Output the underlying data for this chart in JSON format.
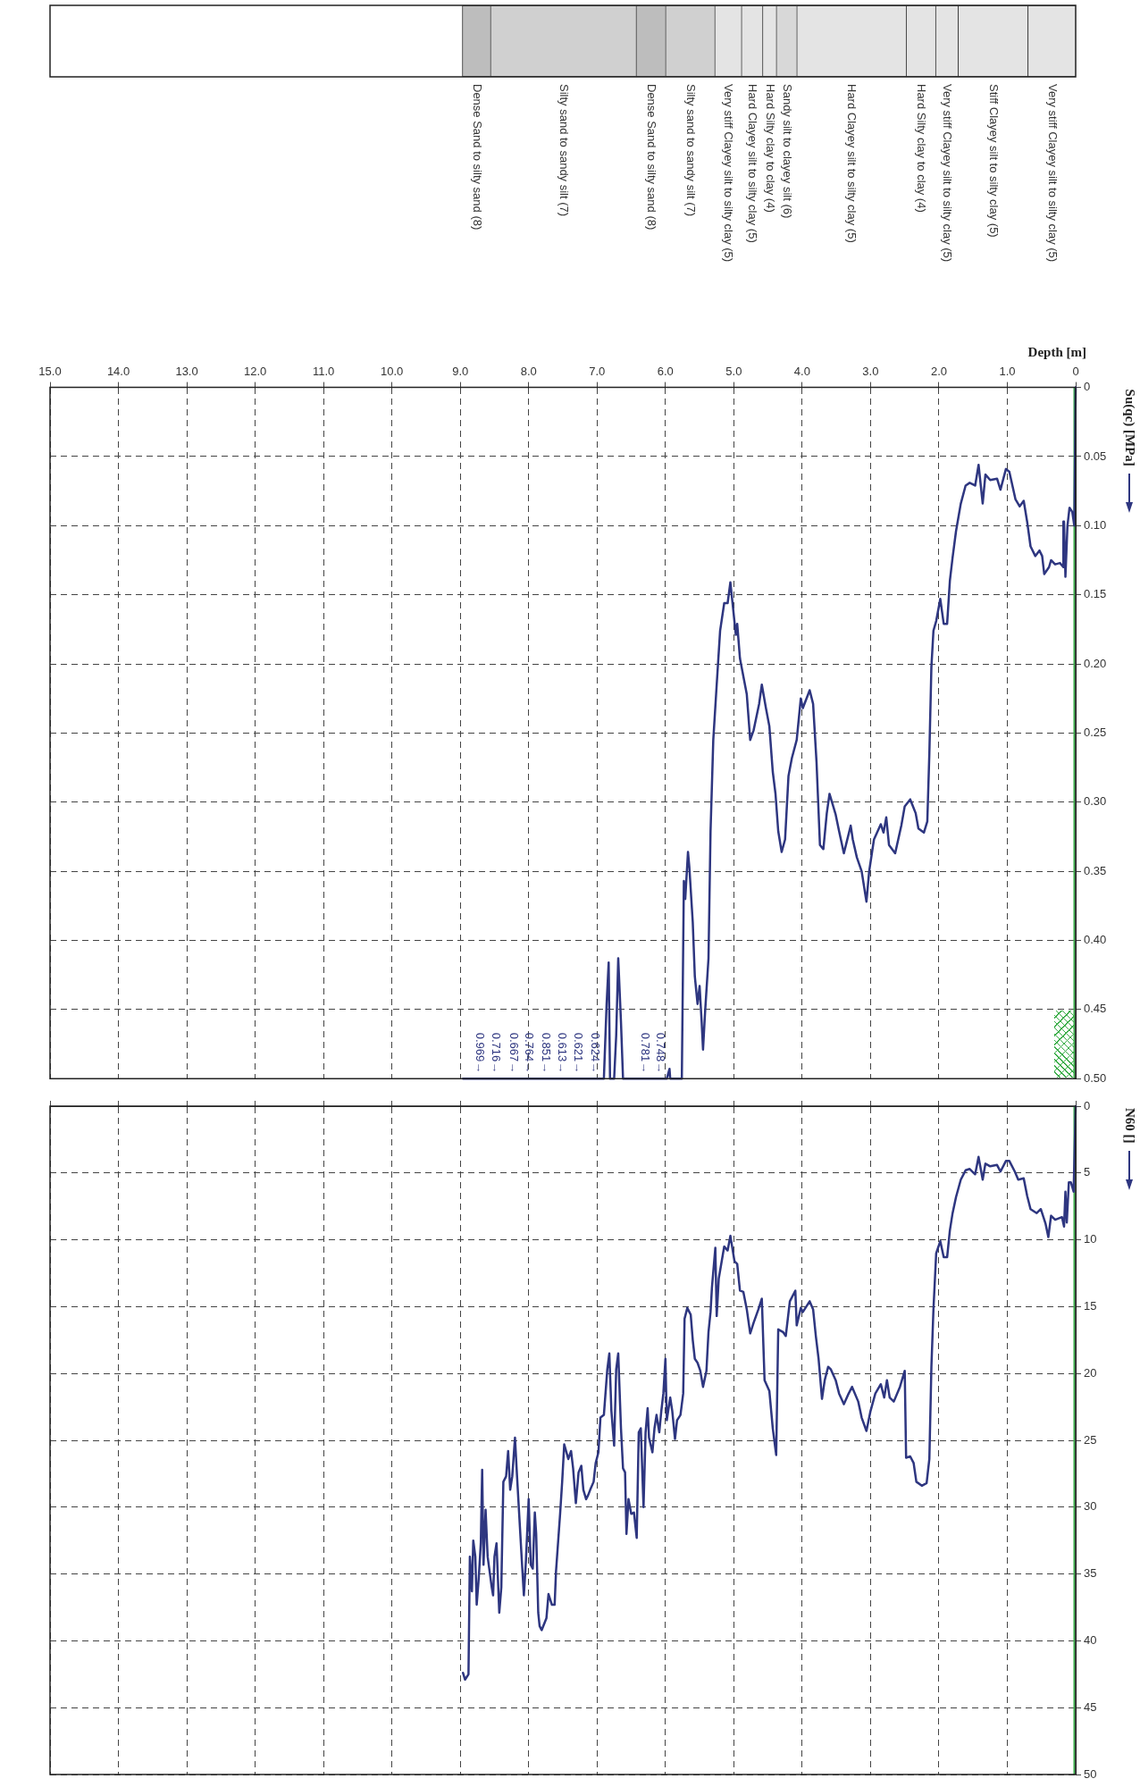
{
  "chart_data": [
    {
      "type": "bar",
      "orientation": "horizontal",
      "stacked": true,
      "categories": [
        null
      ],
      "xlim": [
        15,
        0
      ],
      "tick_labels": false,
      "series": [
        {
          "name": "Very stiff Clayey silt to silty clay (5)",
          "color": "#e4e4e4",
          "values": [
            0.7
          ]
        },
        {
          "name": "Stiff Clayey silt to silty clay (5)",
          "color": "#e4e4e4",
          "values": [
            1.02
          ]
        },
        {
          "name": "Very stiff Clayey silt to silty clay (5)",
          "color": "#e4e4e4",
          "values": [
            0.33
          ]
        },
        {
          "name": "Hard Silty clay to clay (4)",
          "color": "#e4e4e4",
          "values": [
            0.43
          ]
        },
        {
          "name": "Hard Clayey silt to silty clay (5)",
          "color": "#e4e4e4",
          "values": [
            1.6
          ]
        },
        {
          "name": "Sandy silt to clayey silt (6)",
          "color": "#d8d8d8",
          "values": [
            0.3
          ]
        },
        {
          "name": "Hard Silty clay to clay (4)",
          "color": "#e4e4e4",
          "values": [
            0.2
          ]
        },
        {
          "name": "Hard Clayey silt to silty clay (5)",
          "color": "#e4e4e4",
          "values": [
            0.31
          ]
        },
        {
          "name": "Very stiff Clayey silt to silty clay (5)",
          "color": "#e4e4e4",
          "values": [
            0.39
          ]
        },
        {
          "name": "Silty sand to sandy silt (7)",
          "color": "#d0d0d0",
          "values": [
            0.72
          ]
        },
        {
          "name": "Dense Sand to silty sand (8)",
          "color": "#bdbdbd",
          "values": [
            0.43
          ]
        },
        {
          "name": "Silty sand to sandy silt (7)",
          "color": "#d0d0d0",
          "values": [
            2.13
          ]
        },
        {
          "name": "Dense Sand to silty sand (8)",
          "color": "#bdbdbd",
          "values": [
            0.41
          ]
        }
      ]
    },
    {
      "type": "line",
      "xlabel": "Depth [m]",
      "ylabel": "Su(qc) [MPa]",
      "xlim": [
        15,
        0
      ],
      "ylim": [
        0.5,
        0
      ],
      "xticks": [
        0,
        {
          "value": 1,
          "label": "1.0"
        },
        {
          "value": 2,
          "label": "2.0"
        },
        {
          "value": 3,
          "label": "3.0"
        },
        {
          "value": 4,
          "label": "4.0"
        },
        {
          "value": 5,
          "label": "5.0"
        },
        {
          "value": 6,
          "label": "6.0"
        },
        {
          "value": 7,
          "label": "7.0"
        },
        {
          "value": 8,
          "label": "8.0"
        },
        {
          "value": 9,
          "label": "9.0"
        },
        {
          "value": 10,
          "label": "10.0"
        },
        {
          "value": 11,
          "label": "11.0"
        },
        {
          "value": 12,
          "label": "12.0"
        },
        {
          "value": 13,
          "label": "13.0"
        },
        {
          "value": 14,
          "label": "14.0"
        },
        {
          "value": 15,
          "label": "15.0"
        }
      ],
      "yticks": [
        0,
        0.05,
        {
          "value": 0.1,
          "label": "0.10"
        },
        0.15,
        {
          "value": 0.2,
          "label": "0.20"
        },
        0.25,
        {
          "value": 0.3,
          "label": "0.30"
        },
        0.35,
        {
          "value": 0.4,
          "label": "0.40"
        },
        0.45,
        {
          "value": 0.5,
          "label": "0.50"
        }
      ],
      "grid": true,
      "series": [
        {
          "color": "#2e3680",
          "x": [
            0,
            0.02,
            0.05,
            0.09,
            0.12,
            0.15,
            0.17,
            0.18,
            0.23,
            0.3,
            0.36,
            0.39,
            0.46,
            0.49,
            0.53,
            0.59,
            0.66,
            0.71,
            0.76,
            0.82,
            0.88,
            0.97,
            1.02,
            1.1,
            1.15,
            1.25,
            1.32,
            1.36,
            1.42,
            1.47,
            1.55,
            1.61,
            1.68,
            1.75,
            1.8,
            1.84,
            1.88,
            1.93,
            1.98,
            2.04,
            2.08,
            2.11,
            2.14,
            2.17,
            2.22,
            2.3,
            2.34,
            2.42,
            2.5,
            2.55,
            2.64,
            2.73,
            2.77,
            2.81,
            2.85,
            2.95,
            3.02,
            3.06,
            3.13,
            3.2,
            3.26,
            3.29,
            3.35,
            3.39,
            3.46,
            3.51,
            3.6,
            3.64,
            3.69,
            3.74,
            3.79,
            3.84,
            3.89,
            3.99,
            4.02,
            4.08,
            4.15,
            4.2,
            4.25,
            4.3,
            4.35,
            4.39,
            4.43,
            4.48,
            4.53,
            4.59,
            4.63,
            4.71,
            4.76,
            4.81,
            4.86,
            4.91,
            4.95,
            4.97,
            5.01,
            5.05,
            5.09,
            5.14,
            5.2,
            5.25,
            5.3,
            5.34,
            5.37,
            5.42,
            5.45,
            5.47,
            5.5,
            5.53,
            5.57,
            5.6,
            5.65,
            5.67,
            5.71,
            5.73,
            5.76,
            5.82,
            5.93,
            5.94,
            5.98,
            6.62,
            6.65,
            6.69,
            6.72,
            6.75,
            6.81,
            6.83,
            6.86,
            6.9,
            8.96
          ],
          "values": [
            0,
            0.1,
            0.09,
            0.087,
            0.1,
            0.137,
            0.097,
            0.13,
            0.127,
            0.128,
            0.125,
            0.13,
            0.135,
            0.122,
            0.118,
            0.122,
            0.115,
            0.097,
            0.082,
            0.086,
            0.081,
            0.061,
            0.059,
            0.074,
            0.066,
            0.067,
            0.063,
            0.084,
            0.056,
            0.071,
            0.069,
            0.071,
            0.084,
            0.104,
            0.123,
            0.14,
            0.171,
            0.171,
            0.153,
            0.169,
            0.176,
            0.202,
            0.265,
            0.314,
            0.322,
            0.319,
            0.308,
            0.298,
            0.303,
            0.317,
            0.337,
            0.331,
            0.311,
            0.322,
            0.316,
            0.327,
            0.35,
            0.372,
            0.35,
            0.34,
            0.327,
            0.317,
            0.329,
            0.337,
            0.321,
            0.309,
            0.294,
            0.308,
            0.334,
            0.331,
            0.271,
            0.229,
            0.219,
            0.232,
            0.225,
            0.255,
            0.268,
            0.281,
            0.327,
            0.336,
            0.321,
            0.294,
            0.278,
            0.245,
            0.232,
            0.215,
            0.229,
            0.248,
            0.255,
            0.222,
            0.209,
            0.196,
            0.171,
            0.179,
            0.16,
            0.141,
            0.156,
            0.156,
            0.176,
            0.215,
            0.255,
            0.321,
            0.413,
            0.452,
            0.479,
            0.459,
            0.433,
            0.446,
            0.426,
            0.387,
            0.347,
            0.336,
            0.37,
            0.357,
            0.5,
            0.5,
            0.5,
            0.493,
            0.5,
            0.5,
            0.459,
            0.413,
            0.469,
            0.5,
            0.5,
            0.416,
            0.446,
            0.5,
            0.5
          ]
        }
      ],
      "ref_lines": [
        {
          "axis": "x",
          "value": 0.02,
          "color": "#3cae4a"
        }
      ],
      "annotations": [
        {
          "text": "0.748→",
          "x": 6.08,
          "y": 0.5
        },
        {
          "text": "0.781→",
          "x": 6.3,
          "y": 0.5
        },
        {
          "text": "0.624→",
          "x": 7.03,
          "y": 0.5
        },
        {
          "text": "0.621→",
          "x": 7.28,
          "y": 0.5
        },
        {
          "text": "0.613→",
          "x": 7.52,
          "y": 0.5
        },
        {
          "text": "0.851→",
          "x": 7.75,
          "y": 0.5
        },
        {
          "text": "0.764→",
          "x": 8.0,
          "y": 0.5
        },
        {
          "text": "0.667→",
          "x": 8.23,
          "y": 0.5
        },
        {
          "text": "0.716→",
          "x": 8.48,
          "y": 0.5
        },
        {
          "text": "0.969→",
          "x": 8.72,
          "y": 0.5
        }
      ]
    },
    {
      "type": "line",
      "ylabel": "N60 []",
      "xlim": [
        15,
        0
      ],
      "ylim": [
        50,
        0
      ],
      "xticks": [
        0,
        1,
        2,
        3,
        4,
        5,
        6,
        7,
        8,
        9,
        10,
        11,
        12,
        13,
        14,
        15
      ],
      "yticks": [
        0,
        5,
        10,
        15,
        20,
        25,
        30,
        35,
        40,
        45,
        50
      ],
      "grid": true,
      "tick_labels": "y",
      "series": [
        {
          "color": "#2e3680",
          "x": [
            0,
            0.03,
            0.07,
            0.1,
            0.13,
            0.15,
            0.17,
            0.2,
            0.3,
            0.36,
            0.4,
            0.44,
            0.51,
            0.57,
            0.66,
            0.71,
            0.76,
            0.84,
            0.89,
            0.97,
            1.02,
            1.1,
            1.15,
            1.25,
            1.32,
            1.36,
            1.42,
            1.47,
            1.55,
            1.61,
            1.68,
            1.75,
            1.8,
            1.84,
            1.88,
            1.93,
            1.98,
            2.04,
            2.08,
            2.11,
            2.14,
            2.18,
            2.25,
            2.33,
            2.37,
            2.42,
            2.48,
            2.5,
            2.57,
            2.66,
            2.72,
            2.76,
            2.8,
            2.85,
            2.93,
            3.0,
            3.06,
            3.13,
            3.18,
            3.27,
            3.33,
            3.39,
            3.46,
            3.51,
            3.58,
            3.62,
            3.67,
            3.71,
            3.76,
            3.8,
            3.84,
            3.89,
            3.99,
            4.02,
            4.08,
            4.1,
            4.18,
            4.24,
            4.28,
            4.35,
            4.38,
            4.43,
            4.48,
            4.55,
            4.59,
            4.64,
            4.71,
            4.76,
            4.81,
            4.86,
            4.91,
            4.95,
            4.99,
            5.05,
            5.09,
            5.14,
            5.22,
            5.25,
            5.27,
            5.32,
            5.34,
            5.37,
            5.4,
            5.45,
            5.49,
            5.53,
            5.57,
            5.6,
            5.63,
            5.68,
            5.72,
            5.74,
            5.78,
            5.83,
            5.86,
            5.9,
            5.93,
            5.98,
            6.0,
            6.03,
            6.06,
            6.09,
            6.13,
            6.16,
            6.19,
            6.24,
            6.26,
            6.29,
            6.32,
            6.36,
            6.39,
            6.42,
            6.46,
            6.5,
            6.54,
            6.57,
            6.59,
            6.62,
            6.65,
            6.69,
            6.72,
            6.75,
            6.79,
            6.82,
            6.85,
            6.9,
            6.95,
            6.98,
            7.02,
            7.05,
            7.1,
            7.13,
            7.16,
            7.2,
            7.23,
            7.27,
            7.31,
            7.35,
            7.38,
            7.42,
            7.48,
            7.51,
            7.54,
            7.6,
            7.62,
            7.66,
            7.71,
            7.74,
            7.81,
            7.84,
            7.86,
            7.89,
            7.91,
            7.94,
            7.97,
            8.0,
            8.04,
            8.07,
            8.1,
            8.17,
            8.2,
            8.24,
            8.27,
            8.3,
            8.33,
            8.37,
            8.4,
            8.43,
            8.47,
            8.5,
            8.52,
            8.54,
            8.6,
            8.63,
            8.66,
            8.68,
            8.7,
            8.73,
            8.76,
            8.78,
            8.81,
            8.83,
            8.86,
            8.88,
            8.93,
            8.96
          ],
          "values": [
            0,
            6.4,
            5.7,
            5.7,
            8.7,
            6.4,
            9.0,
            8.3,
            8.5,
            8.2,
            9.8,
            8.8,
            7.7,
            8.0,
            7.7,
            6.7,
            5.4,
            5.5,
            4.9,
            4.1,
            4.1,
            4.9,
            4.4,
            4.5,
            4.3,
            5.5,
            3.8,
            5.1,
            4.7,
            4.8,
            5.5,
            6.8,
            8.0,
            9.3,
            11.3,
            11.3,
            10.1,
            11.0,
            15.2,
            19.5,
            26.4,
            28.2,
            28.4,
            28.1,
            26.7,
            26.2,
            26.3,
            19.8,
            21.0,
            22.1,
            21.8,
            20.5,
            21.8,
            20.8,
            21.5,
            22.8,
            24.3,
            23.3,
            22.1,
            21.0,
            21.6,
            22.3,
            21.5,
            20.5,
            19.7,
            19.5,
            20.5,
            21.9,
            18.9,
            17.2,
            15.2,
            14.6,
            15.4,
            15.1,
            16.4,
            13.8,
            14.6,
            17.2,
            16.9,
            16.7,
            26.1,
            24.1,
            21.3,
            20.5,
            14.4,
            15.2,
            16.2,
            17.0,
            15.2,
            13.9,
            13.8,
            11.8,
            11.6,
            9.7,
            10.8,
            10.5,
            12.9,
            15.7,
            10.6,
            13.6,
            15.4,
            16.9,
            19.8,
            21.0,
            19.8,
            19.2,
            18.9,
            17.5,
            15.6,
            15.1,
            15.9,
            21.5,
            23.1,
            23.5,
            24.9,
            22.8,
            21.8,
            23.5,
            18.9,
            21.5,
            22.8,
            24.4,
            23.1,
            24.1,
            25.9,
            24.8,
            22.6,
            24.4,
            30.0,
            24.1,
            24.4,
            32.3,
            30.4,
            30.5,
            29.4,
            32.0,
            27.4,
            27.1,
            24.1,
            18.5,
            19.7,
            25.4,
            22.8,
            18.5,
            19.7,
            23.1,
            23.3,
            25.9,
            26.7,
            28.1,
            28.7,
            29.1,
            29.4,
            28.7,
            26.9,
            27.4,
            29.7,
            27.1,
            25.8,
            26.4,
            25.3,
            28.1,
            30.5,
            34.8,
            37.3,
            37.3,
            36.5,
            38.3,
            39.2,
            38.9,
            37.9,
            32.0,
            30.4,
            34.6,
            34.3,
            29.4,
            34.0,
            36.6,
            34.0,
            27.7,
            24.8,
            27.7,
            28.7,
            25.8,
            27.7,
            28.1,
            36.0,
            37.9,
            32.7,
            33.7,
            36.6,
            36.0,
            33.7,
            30.2,
            34.3,
            27.2,
            32.7,
            35.3,
            37.3,
            33.7,
            32.5,
            36.3,
            33.7,
            42.5,
            42.9,
            42.4
          ]
        }
      ],
      "ref_lines": [
        {
          "axis": "x",
          "value": 0.02,
          "color": "#3cae4a"
        }
      ]
    }
  ]
}
